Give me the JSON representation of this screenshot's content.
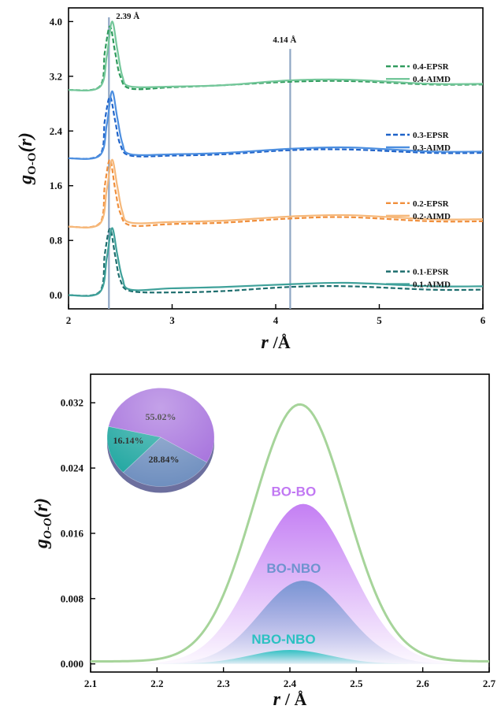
{
  "chart_data": [
    {
      "type": "line",
      "xlabel": "r /Å",
      "ylabel": "gO-O(r)",
      "xlim": [
        2,
        6
      ],
      "ylim": [
        -0.2,
        4.2
      ],
      "x_ticks": [
        "2",
        "3",
        "4",
        "5",
        "6"
      ],
      "y_ticks": [
        "0.0",
        "0.8",
        "1.6",
        "2.4",
        "3.2",
        "4.0"
      ],
      "legend_position": "right, beside each curve",
      "annotations": [
        {
          "text": "2.39 Å",
          "x": 2.39
        },
        {
          "text": "4.14 Å",
          "x": 4.14
        }
      ],
      "series": [
        {
          "name": "0.4-EPSR",
          "style": "dashed",
          "color": "#2e9a5c",
          "x": [
            2.0,
            2.3,
            2.35,
            2.4,
            2.45,
            2.5,
            2.6,
            3.0,
            3.5,
            4.14,
            4.7,
            5.5,
            6.0
          ],
          "y": [
            3.0,
            3.05,
            3.55,
            3.93,
            3.55,
            3.2,
            3.02,
            3.04,
            3.07,
            3.12,
            3.13,
            3.08,
            3.08
          ]
        },
        {
          "name": "0.4-AIMD",
          "style": "solid",
          "color": "#74c79a",
          "x": [
            2.0,
            2.3,
            2.37,
            2.42,
            2.47,
            2.52,
            2.6,
            3.0,
            3.5,
            4.14,
            4.7,
            5.5,
            6.0
          ],
          "y": [
            3.0,
            3.04,
            3.5,
            4.0,
            3.6,
            3.2,
            3.05,
            3.05,
            3.07,
            3.14,
            3.15,
            3.09,
            3.09
          ]
        },
        {
          "name": "0.3-EPSR",
          "style": "dashed",
          "color": "#1f63c9",
          "x": [
            2.0,
            2.3,
            2.35,
            2.4,
            2.45,
            2.5,
            2.6,
            3.0,
            3.5,
            4.14,
            4.7,
            5.5,
            6.0
          ],
          "y": [
            2.0,
            2.05,
            2.55,
            2.9,
            2.55,
            2.2,
            2.04,
            2.04,
            2.06,
            2.12,
            2.13,
            2.08,
            2.08
          ]
        },
        {
          "name": "0.3-AIMD",
          "style": "solid",
          "color": "#4d8fe0",
          "x": [
            2.0,
            2.3,
            2.37,
            2.42,
            2.47,
            2.52,
            2.6,
            3.0,
            3.5,
            4.14,
            4.7,
            5.5,
            6.0
          ],
          "y": [
            2.0,
            2.04,
            2.5,
            2.98,
            2.6,
            2.22,
            2.06,
            2.06,
            2.08,
            2.14,
            2.16,
            2.1,
            2.1
          ]
        },
        {
          "name": "0.2-EPSR",
          "style": "dashed",
          "color": "#f08f3c",
          "x": [
            2.0,
            2.3,
            2.35,
            2.4,
            2.45,
            2.5,
            2.6,
            3.0,
            3.5,
            4.14,
            4.7,
            5.5,
            6.0
          ],
          "y": [
            1.0,
            1.05,
            1.6,
            1.98,
            1.55,
            1.2,
            1.02,
            1.04,
            1.06,
            1.12,
            1.14,
            1.08,
            1.08
          ]
        },
        {
          "name": "0.2-AIMD",
          "style": "solid",
          "color": "#f6b87a",
          "x": [
            2.0,
            2.3,
            2.37,
            2.42,
            2.47,
            2.52,
            2.6,
            3.0,
            3.5,
            4.14,
            4.7,
            5.5,
            6.0
          ],
          "y": [
            1.0,
            1.04,
            1.55,
            1.98,
            1.6,
            1.22,
            1.06,
            1.07,
            1.09,
            1.15,
            1.17,
            1.11,
            1.11
          ]
        },
        {
          "name": "0.1-EPSR",
          "style": "dashed",
          "color": "#1e6e6e",
          "x": [
            2.0,
            2.3,
            2.35,
            2.4,
            2.45,
            2.5,
            2.6,
            3.0,
            3.5,
            4.14,
            4.7,
            5.5,
            6.0
          ],
          "y": [
            0.0,
            0.05,
            0.6,
            0.97,
            0.58,
            0.22,
            0.06,
            0.04,
            0.06,
            0.12,
            0.13,
            0.08,
            0.08
          ]
        },
        {
          "name": "0.1-AIMD",
          "style": "solid",
          "color": "#3fa19a",
          "x": [
            2.0,
            2.3,
            2.37,
            2.42,
            2.47,
            2.52,
            2.6,
            3.0,
            3.5,
            4.14,
            4.7,
            5.5,
            6.0
          ],
          "y": [
            0.0,
            0.04,
            0.55,
            0.98,
            0.6,
            0.25,
            0.08,
            0.1,
            0.12,
            0.16,
            0.18,
            0.13,
            0.13
          ]
        }
      ]
    },
    {
      "type": "area",
      "xlabel": "r / Å",
      "ylabel": "gO-O(r)",
      "xlim": [
        2.1,
        2.7
      ],
      "ylim": [
        -0.001,
        0.0355
      ],
      "x_ticks": [
        "2.1",
        "2.2",
        "2.3",
        "2.4",
        "2.5",
        "2.6",
        "2.7"
      ],
      "y_ticks": [
        "0.000",
        "0.008",
        "0.016",
        "0.024",
        "0.032"
      ],
      "total_curve": {
        "color": "#a6d49a",
        "peak_x": 2.415,
        "peak_y": 0.0315,
        "sigma": 0.07,
        "baseline": 0.0003
      },
      "series": [
        {
          "name": "BO-BO",
          "color": "#c178f3",
          "peak_x": 2.42,
          "peak_y": 0.0196,
          "sigma": 0.072
        },
        {
          "name": "BO-NBO",
          "color": "#6f93cf",
          "peak_x": 2.42,
          "peak_y": 0.0102,
          "sigma": 0.065
        },
        {
          "name": "NBO-NBO",
          "color": "#2bc1c1",
          "peak_x": 2.4,
          "peak_y": 0.0017,
          "sigma": 0.06
        }
      ],
      "inset_pie": {
        "slices": [
          {
            "label": "55.02%",
            "value": 55.02,
            "color": "#a46fdc"
          },
          {
            "label": "28.84%",
            "value": 28.84,
            "color": "#6f8fbf"
          },
          {
            "label": "16.14%",
            "value": 16.14,
            "color": "#1fa6a0"
          }
        ]
      }
    }
  ]
}
